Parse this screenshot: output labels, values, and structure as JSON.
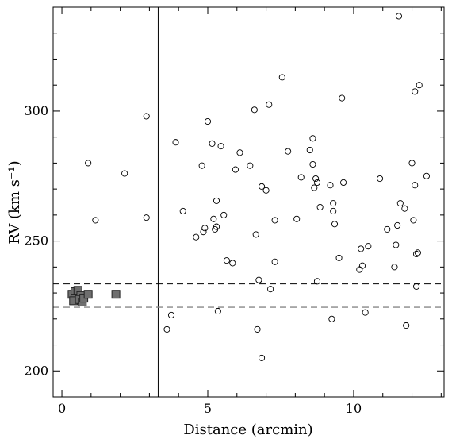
{
  "chart_data": {
    "type": "scatter",
    "xlabel": "Distance (arcmin)",
    "ylabel": "RV (km s⁻¹)",
    "xlim": [
      -0.3,
      13.1
    ],
    "ylim": [
      190,
      340
    ],
    "x_major_ticks": [
      0,
      5,
      10
    ],
    "x_minor_step": 1,
    "y_major_ticks": [
      200,
      250,
      300
    ],
    "y_minor_step": 10,
    "grid": false,
    "legend": "none",
    "reference_lines": {
      "vertical_solid_x": 3.3,
      "horizontal_dashed_upper_y": 233.5,
      "horizontal_dashed_lower_y": 224.5,
      "upper_line_color": "#000000",
      "lower_line_color": "#888888"
    },
    "series": [
      {
        "marker": "filled-square",
        "color": "#6e6e6e",
        "points": [
          [
            0.35,
            229.5
          ],
          [
            0.45,
            230.5
          ],
          [
            0.55,
            231.0
          ],
          [
            0.45,
            228.0
          ],
          [
            0.4,
            227.0
          ],
          [
            0.65,
            229.0
          ],
          [
            0.6,
            227.5
          ],
          [
            0.7,
            226.5
          ],
          [
            0.75,
            228.0
          ],
          [
            0.9,
            229.5
          ],
          [
            1.85,
            229.5
          ]
        ]
      },
      {
        "marker": "open-circle",
        "color": "#000000",
        "points": [
          [
            0.9,
            280
          ],
          [
            1.15,
            258
          ],
          [
            2.15,
            276
          ],
          [
            2.9,
            298
          ],
          [
            2.9,
            259
          ],
          [
            3.6,
            216
          ],
          [
            3.75,
            221.5
          ],
          [
            3.9,
            288
          ],
          [
            4.15,
            261.5
          ],
          [
            4.6,
            251.5
          ],
          [
            4.8,
            279
          ],
          [
            4.85,
            253.5
          ],
          [
            4.9,
            255
          ],
          [
            5.0,
            296
          ],
          [
            5.15,
            287.5
          ],
          [
            5.2,
            258.5
          ],
          [
            5.25,
            254.5
          ],
          [
            5.3,
            265.5
          ],
          [
            5.3,
            255.5
          ],
          [
            5.35,
            223
          ],
          [
            5.45,
            286.5
          ],
          [
            5.55,
            260
          ],
          [
            5.65,
            242.5
          ],
          [
            5.85,
            241.5
          ],
          [
            5.95,
            277.5
          ],
          [
            6.1,
            284
          ],
          [
            6.45,
            279
          ],
          [
            6.6,
            300.5
          ],
          [
            6.65,
            252.5
          ],
          [
            6.7,
            216
          ],
          [
            6.75,
            235
          ],
          [
            6.85,
            271
          ],
          [
            6.85,
            205
          ],
          [
            7.0,
            269.5
          ],
          [
            7.1,
            302.5
          ],
          [
            7.15,
            231.5
          ],
          [
            7.3,
            258
          ],
          [
            7.3,
            242
          ],
          [
            7.55,
            313
          ],
          [
            7.75,
            284.5
          ],
          [
            8.05,
            258.5
          ],
          [
            8.2,
            274.5
          ],
          [
            8.5,
            285
          ],
          [
            8.6,
            289.5
          ],
          [
            8.6,
            279.5
          ],
          [
            8.65,
            270.5
          ],
          [
            8.7,
            274
          ],
          [
            8.75,
            272.5
          ],
          [
            8.75,
            234.5
          ],
          [
            8.85,
            263
          ],
          [
            9.2,
            271.5
          ],
          [
            9.25,
            220
          ],
          [
            9.3,
            264.5
          ],
          [
            9.3,
            261.5
          ],
          [
            9.35,
            256.5
          ],
          [
            9.5,
            243.5
          ],
          [
            9.6,
            305
          ],
          [
            9.65,
            272.5
          ],
          [
            10.2,
            239
          ],
          [
            10.25,
            247
          ],
          [
            10.3,
            240.5
          ],
          [
            10.4,
            222.5
          ],
          [
            10.5,
            248
          ],
          [
            10.9,
            274
          ],
          [
            11.15,
            254.5
          ],
          [
            11.4,
            240
          ],
          [
            11.45,
            248.5
          ],
          [
            11.5,
            256
          ],
          [
            11.55,
            336.5
          ],
          [
            11.6,
            264.5
          ],
          [
            11.75,
            262.5
          ],
          [
            11.8,
            217.5
          ],
          [
            12.0,
            280
          ],
          [
            12.05,
            258
          ],
          [
            12.1,
            307.5
          ],
          [
            12.1,
            271.5
          ],
          [
            12.15,
            245
          ],
          [
            12.15,
            232.5
          ],
          [
            12.2,
            245.5
          ],
          [
            12.25,
            310
          ],
          [
            12.5,
            275
          ]
        ]
      }
    ]
  }
}
